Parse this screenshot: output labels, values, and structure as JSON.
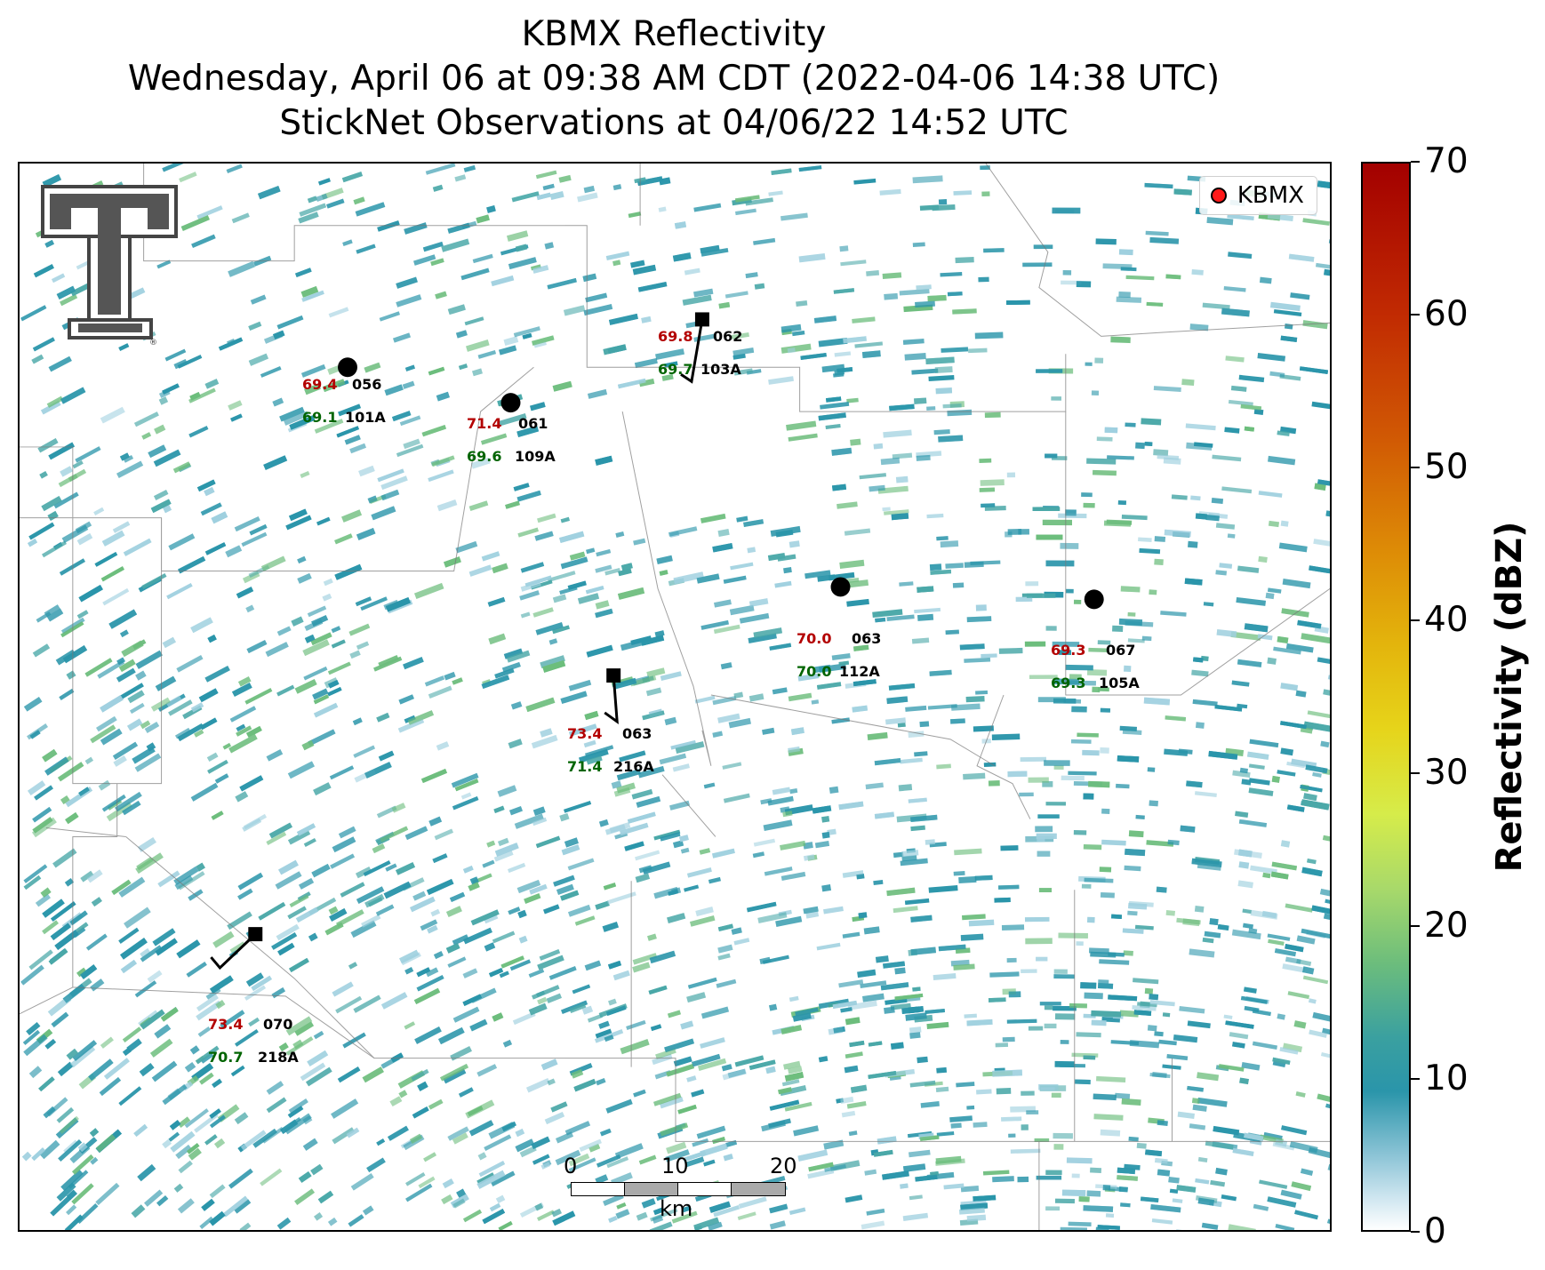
{
  "title": {
    "line1": "KBMX Reflectivity",
    "line2": "Wednesday, April 06 at 09:38 AM CDT (2022-04-06 14:38 UTC)",
    "line3": "StickNet Observations at 04/06/22 14:52 UTC"
  },
  "legend": {
    "label": "KBMX",
    "marker_color": "#ff1a1a"
  },
  "colorbar": {
    "label": "Reflectivity (dBZ)",
    "ticks": [
      "0",
      "10",
      "20",
      "30",
      "40",
      "50",
      "60",
      "70"
    ],
    "range": [
      0,
      70
    ]
  },
  "scalebar": {
    "ticks": [
      "0",
      "10",
      "20"
    ],
    "unit": "km"
  },
  "stations": [
    {
      "id": "056",
      "probe": "101A",
      "temp": "69.4",
      "dew": "69.1",
      "marker": "circle"
    },
    {
      "id": "061",
      "probe": "109A",
      "temp": "71.4",
      "dew": "69.6",
      "marker": "circle"
    },
    {
      "id": "062",
      "probe": "103A",
      "temp": "69.8",
      "dew": "69.7",
      "marker": "square"
    },
    {
      "id": "063",
      "probe": "112A",
      "temp": "70.0",
      "dew": "70.0",
      "marker": "circle"
    },
    {
      "id": "067",
      "probe": "105A",
      "temp": "69.3",
      "dew": "69.3",
      "marker": "circle"
    },
    {
      "id": "063",
      "probe": "216A",
      "temp": "73.4",
      "dew": "71.4",
      "marker": "square"
    },
    {
      "id": "070",
      "probe": "218A",
      "temp": "73.4",
      "dew": "70.7",
      "marker": "square"
    }
  ],
  "colors": {
    "temp": "#b30000",
    "dew": "#006400",
    "radar_base": "#2a95aa",
    "radar_light": "#9fd0df",
    "radar_green": "#6cbd7c"
  },
  "logo": {
    "text": "TT"
  }
}
